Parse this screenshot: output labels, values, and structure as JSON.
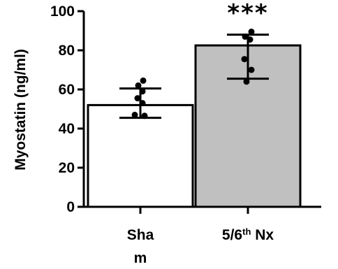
{
  "chart_data": {
    "type": "bar",
    "title": "",
    "xlabel": "",
    "ylabel": "Myostatin (ng/ml)",
    "ylim": [
      0,
      100
    ],
    "yticks": [
      "0",
      "20",
      "40",
      "60",
      "80",
      "100"
    ],
    "grid": false,
    "legend": "none",
    "categories": [
      {
        "lines": [
          "Sha",
          "m"
        ]
      },
      {
        "base": "5/6",
        "sup": "th",
        "rest": " Nx"
      }
    ],
    "values": [
      52,
      82.5
    ],
    "error_low": [
      45.5,
      65.5
    ],
    "error_high": [
      60.5,
      88
    ],
    "points": [
      [
        64.5,
        62,
        59,
        55.5,
        53,
        47,
        46.5
      ],
      [
        89.5,
        87,
        85.5,
        75.5,
        70,
        64
      ]
    ],
    "bar_colors": [
      "#ffffff",
      "#c0c0c0"
    ],
    "annotations": [
      {
        "category": 1,
        "text": "***"
      }
    ]
  }
}
